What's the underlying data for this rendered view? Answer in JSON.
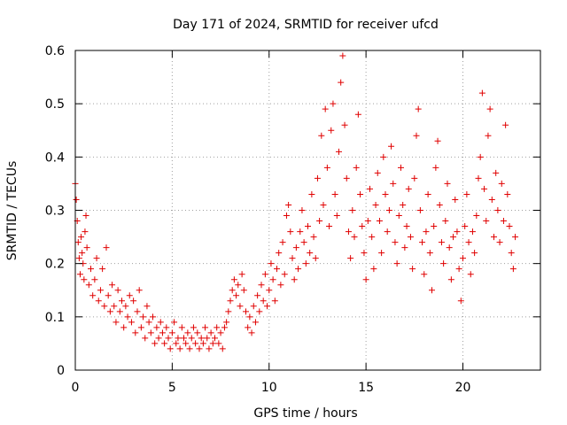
{
  "chart_data": {
    "type": "scatter",
    "title": "Day 171 of 2024, SRMTID for receiver ufcd",
    "xlabel": "GPS time / hours",
    "ylabel": "SRMTID / TECUs",
    "xlim": [
      0,
      24
    ],
    "ylim": [
      0,
      0.6
    ],
    "xticks": [
      0,
      5,
      10,
      15,
      20
    ],
    "xtick_labels": [
      "0",
      "5",
      "10",
      "15",
      "20"
    ],
    "yticks": [
      0,
      0.1,
      0.2,
      0.3,
      0.4,
      0.5,
      0.6
    ],
    "ytick_labels": [
      "0",
      "0.1",
      "0.2",
      "0.3",
      "0.4",
      "0.5",
      "0.6"
    ],
    "grid": true,
    "marker": "+",
    "color": "#e00000",
    "series": [
      {
        "name": "SRMTID",
        "points": [
          [
            0.0,
            0.35
          ],
          [
            0.05,
            0.32
          ],
          [
            0.1,
            0.28
          ],
          [
            0.15,
            0.24
          ],
          [
            0.2,
            0.21
          ],
          [
            0.25,
            0.18
          ],
          [
            0.3,
            0.25
          ],
          [
            0.35,
            0.22
          ],
          [
            0.4,
            0.2
          ],
          [
            0.45,
            0.17
          ],
          [
            0.5,
            0.26
          ],
          [
            0.55,
            0.29
          ],
          [
            0.6,
            0.23
          ],
          [
            0.7,
            0.16
          ],
          [
            0.8,
            0.19
          ],
          [
            0.9,
            0.14
          ],
          [
            1.0,
            0.17
          ],
          [
            1.1,
            0.21
          ],
          [
            1.2,
            0.13
          ],
          [
            1.3,
            0.15
          ],
          [
            1.4,
            0.19
          ],
          [
            1.5,
            0.12
          ],
          [
            1.6,
            0.23
          ],
          [
            1.7,
            0.14
          ],
          [
            1.8,
            0.11
          ],
          [
            1.9,
            0.16
          ],
          [
            2.0,
            0.12
          ],
          [
            2.1,
            0.09
          ],
          [
            2.2,
            0.15
          ],
          [
            2.3,
            0.11
          ],
          [
            2.4,
            0.13
          ],
          [
            2.5,
            0.08
          ],
          [
            2.6,
            0.12
          ],
          [
            2.7,
            0.1
          ],
          [
            2.8,
            0.14
          ],
          [
            2.9,
            0.09
          ],
          [
            3.0,
            0.13
          ],
          [
            3.1,
            0.07
          ],
          [
            3.2,
            0.11
          ],
          [
            3.3,
            0.15
          ],
          [
            3.4,
            0.08
          ],
          [
            3.5,
            0.1
          ],
          [
            3.6,
            0.06
          ],
          [
            3.7,
            0.12
          ],
          [
            3.8,
            0.09
          ],
          [
            3.9,
            0.07
          ],
          [
            4.0,
            0.1
          ],
          [
            4.1,
            0.05
          ],
          [
            4.2,
            0.08
          ],
          [
            4.3,
            0.06
          ],
          [
            4.4,
            0.09
          ],
          [
            4.5,
            0.07
          ],
          [
            4.6,
            0.05
          ],
          [
            4.7,
            0.08
          ],
          [
            4.8,
            0.06
          ],
          [
            4.9,
            0.04
          ],
          [
            5.0,
            0.07
          ],
          [
            5.1,
            0.09
          ],
          [
            5.2,
            0.05
          ],
          [
            5.3,
            0.06
          ],
          [
            5.4,
            0.04
          ],
          [
            5.5,
            0.08
          ],
          [
            5.6,
            0.06
          ],
          [
            5.7,
            0.05
          ],
          [
            5.8,
            0.07
          ],
          [
            5.9,
            0.04
          ],
          [
            6.0,
            0.06
          ],
          [
            6.1,
            0.08
          ],
          [
            6.2,
            0.05
          ],
          [
            6.3,
            0.07
          ],
          [
            6.4,
            0.04
          ],
          [
            6.5,
            0.06
          ],
          [
            6.6,
            0.05
          ],
          [
            6.7,
            0.08
          ],
          [
            6.8,
            0.06
          ],
          [
            6.9,
            0.04
          ],
          [
            7.0,
            0.07
          ],
          [
            7.1,
            0.05
          ],
          [
            7.2,
            0.06
          ],
          [
            7.3,
            0.08
          ],
          [
            7.4,
            0.05
          ],
          [
            7.5,
            0.07
          ],
          [
            7.6,
            0.04
          ],
          [
            7.7,
            0.08
          ],
          [
            7.8,
            0.09
          ],
          [
            7.9,
            0.11
          ],
          [
            8.0,
            0.13
          ],
          [
            8.1,
            0.15
          ],
          [
            8.2,
            0.17
          ],
          [
            8.3,
            0.14
          ],
          [
            8.4,
            0.16
          ],
          [
            8.5,
            0.12
          ],
          [
            8.6,
            0.18
          ],
          [
            8.7,
            0.15
          ],
          [
            8.8,
            0.11
          ],
          [
            8.9,
            0.08
          ],
          [
            9.0,
            0.1
          ],
          [
            9.1,
            0.07
          ],
          [
            9.2,
            0.12
          ],
          [
            9.3,
            0.09
          ],
          [
            9.4,
            0.14
          ],
          [
            9.5,
            0.11
          ],
          [
            9.6,
            0.16
          ],
          [
            9.7,
            0.13
          ],
          [
            9.8,
            0.18
          ],
          [
            9.9,
            0.12
          ],
          [
            10.0,
            0.15
          ],
          [
            10.1,
            0.2
          ],
          [
            10.2,
            0.17
          ],
          [
            10.3,
            0.13
          ],
          [
            10.4,
            0.19
          ],
          [
            10.5,
            0.22
          ],
          [
            10.6,
            0.16
          ],
          [
            10.7,
            0.24
          ],
          [
            10.8,
            0.18
          ],
          [
            10.9,
            0.29
          ],
          [
            11.0,
            0.31
          ],
          [
            11.1,
            0.26
          ],
          [
            11.2,
            0.21
          ],
          [
            11.3,
            0.17
          ],
          [
            11.4,
            0.23
          ],
          [
            11.5,
            0.19
          ],
          [
            11.6,
            0.26
          ],
          [
            11.7,
            0.3
          ],
          [
            11.8,
            0.24
          ],
          [
            11.9,
            0.2
          ],
          [
            12.0,
            0.27
          ],
          [
            12.1,
            0.22
          ],
          [
            12.2,
            0.33
          ],
          [
            12.3,
            0.25
          ],
          [
            12.4,
            0.21
          ],
          [
            12.5,
            0.36
          ],
          [
            12.6,
            0.28
          ],
          [
            12.7,
            0.44
          ],
          [
            12.8,
            0.31
          ],
          [
            12.9,
            0.49
          ],
          [
            13.0,
            0.38
          ],
          [
            13.1,
            0.27
          ],
          [
            13.2,
            0.45
          ],
          [
            13.3,
            0.5
          ],
          [
            13.4,
            0.33
          ],
          [
            13.5,
            0.29
          ],
          [
            13.6,
            0.41
          ],
          [
            13.7,
            0.54
          ],
          [
            13.8,
            0.59
          ],
          [
            13.9,
            0.46
          ],
          [
            14.0,
            0.36
          ],
          [
            14.1,
            0.26
          ],
          [
            14.2,
            0.21
          ],
          [
            14.3,
            0.3
          ],
          [
            14.4,
            0.25
          ],
          [
            14.5,
            0.38
          ],
          [
            14.6,
            0.48
          ],
          [
            14.7,
            0.33
          ],
          [
            14.8,
            0.27
          ],
          [
            14.9,
            0.22
          ],
          [
            15.0,
            0.17
          ],
          [
            15.1,
            0.28
          ],
          [
            15.2,
            0.34
          ],
          [
            15.3,
            0.25
          ],
          [
            15.4,
            0.19
          ],
          [
            15.5,
            0.31
          ],
          [
            15.6,
            0.37
          ],
          [
            15.7,
            0.28
          ],
          [
            15.8,
            0.22
          ],
          [
            15.9,
            0.4
          ],
          [
            16.0,
            0.33
          ],
          [
            16.1,
            0.26
          ],
          [
            16.2,
            0.3
          ],
          [
            16.3,
            0.42
          ],
          [
            16.4,
            0.35
          ],
          [
            16.5,
            0.24
          ],
          [
            16.6,
            0.2
          ],
          [
            16.7,
            0.29
          ],
          [
            16.8,
            0.38
          ],
          [
            16.9,
            0.31
          ],
          [
            17.0,
            0.23
          ],
          [
            17.1,
            0.27
          ],
          [
            17.2,
            0.34
          ],
          [
            17.3,
            0.25
          ],
          [
            17.4,
            0.19
          ],
          [
            17.5,
            0.36
          ],
          [
            17.6,
            0.44
          ],
          [
            17.7,
            0.49
          ],
          [
            17.8,
            0.3
          ],
          [
            17.9,
            0.24
          ],
          [
            18.0,
            0.18
          ],
          [
            18.1,
            0.26
          ],
          [
            18.2,
            0.33
          ],
          [
            18.3,
            0.22
          ],
          [
            18.4,
            0.15
          ],
          [
            18.5,
            0.27
          ],
          [
            18.6,
            0.38
          ],
          [
            18.7,
            0.43
          ],
          [
            18.8,
            0.31
          ],
          [
            18.9,
            0.24
          ],
          [
            19.0,
            0.2
          ],
          [
            19.1,
            0.28
          ],
          [
            19.2,
            0.35
          ],
          [
            19.3,
            0.23
          ],
          [
            19.4,
            0.17
          ],
          [
            19.5,
            0.25
          ],
          [
            19.6,
            0.32
          ],
          [
            19.7,
            0.26
          ],
          [
            19.8,
            0.19
          ],
          [
            19.9,
            0.13
          ],
          [
            20.0,
            0.21
          ],
          [
            20.1,
            0.27
          ],
          [
            20.2,
            0.33
          ],
          [
            20.3,
            0.24
          ],
          [
            20.4,
            0.18
          ],
          [
            20.5,
            0.26
          ],
          [
            20.6,
            0.22
          ],
          [
            20.7,
            0.29
          ],
          [
            20.8,
            0.36
          ],
          [
            20.9,
            0.4
          ],
          [
            21.0,
            0.52
          ],
          [
            21.1,
            0.34
          ],
          [
            21.2,
            0.28
          ],
          [
            21.3,
            0.44
          ],
          [
            21.4,
            0.49
          ],
          [
            21.5,
            0.32
          ],
          [
            21.6,
            0.25
          ],
          [
            21.7,
            0.37
          ],
          [
            21.8,
            0.3
          ],
          [
            21.9,
            0.24
          ],
          [
            22.0,
            0.35
          ],
          [
            22.1,
            0.28
          ],
          [
            22.2,
            0.46
          ],
          [
            22.3,
            0.33
          ],
          [
            22.4,
            0.27
          ],
          [
            22.5,
            0.22
          ],
          [
            22.6,
            0.19
          ],
          [
            22.7,
            0.25
          ]
        ]
      }
    ]
  }
}
